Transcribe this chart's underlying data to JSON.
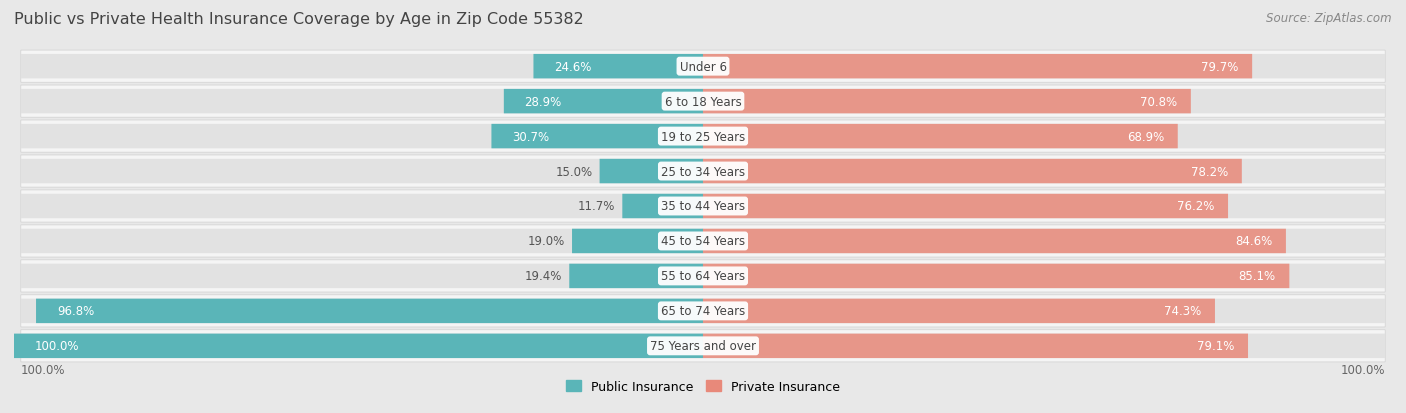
{
  "title": "Public vs Private Health Insurance Coverage by Age in Zip Code 55382",
  "source": "Source: ZipAtlas.com",
  "categories": [
    "Under 6",
    "6 to 18 Years",
    "19 to 25 Years",
    "25 to 34 Years",
    "35 to 44 Years",
    "45 to 54 Years",
    "55 to 64 Years",
    "65 to 74 Years",
    "75 Years and over"
  ],
  "public_values": [
    24.6,
    28.9,
    30.7,
    15.0,
    11.7,
    19.0,
    19.4,
    96.8,
    100.0
  ],
  "private_values": [
    79.7,
    70.8,
    68.9,
    78.2,
    76.2,
    84.6,
    85.1,
    74.3,
    79.1
  ],
  "public_color": "#5ab5b8",
  "private_color": "#e8897a",
  "private_light_color": "#f0b5ab",
  "bg_color": "#e8e8e8",
  "row_bg": "#f5f5f5",
  "row_border": "#d0d0d0",
  "bar_bg_left": "#e2e2e2",
  "bar_bg_right": "#e2e2e2",
  "label_white": "#ffffff",
  "label_dark": "#555555",
  "title_color": "#444444",
  "source_color": "#888888",
  "title_fontsize": 11.5,
  "source_fontsize": 8.5,
  "value_fontsize": 8.5,
  "cat_fontsize": 8.5,
  "axis_label_fontsize": 8.5
}
